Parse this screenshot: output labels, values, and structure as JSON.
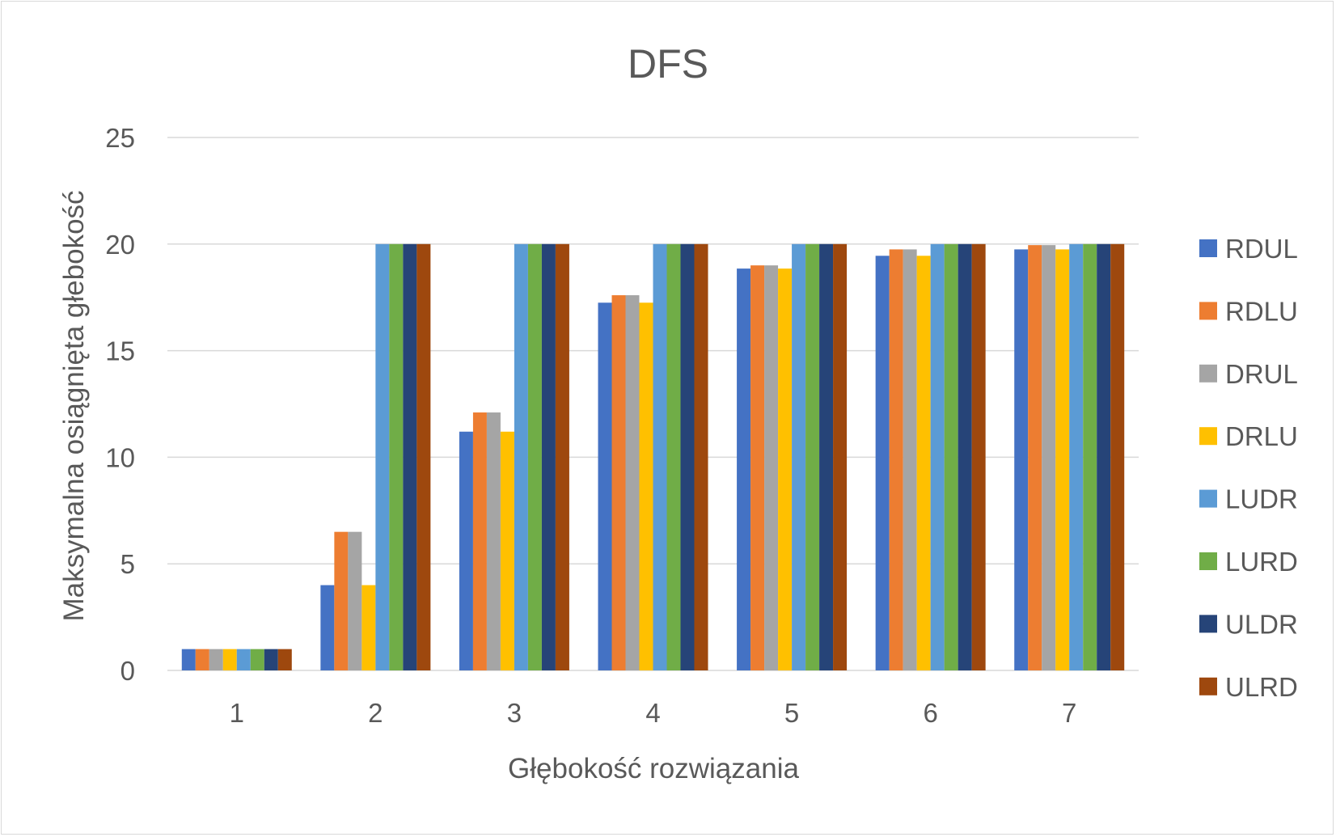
{
  "chart_data": {
    "type": "bar",
    "title": "DFS",
    "xlabel": "Głębokość rozwiązania",
    "ylabel": "Maksymalna osiągnięta głebokość",
    "categories": [
      "1",
      "2",
      "3",
      "4",
      "5",
      "6",
      "7"
    ],
    "ylim": [
      0,
      25
    ],
    "yticks": [
      0,
      5,
      10,
      15,
      20,
      25
    ],
    "grid": true,
    "legend_position": "right",
    "series": [
      {
        "name": "RDUL",
        "color": "#4472C4",
        "values": [
          1,
          4,
          11.2,
          17.25,
          18.85,
          19.45,
          19.75
        ]
      },
      {
        "name": "RDLU",
        "color": "#ED7D31",
        "values": [
          1,
          6.5,
          12.1,
          17.6,
          19,
          19.75,
          19.95
        ]
      },
      {
        "name": "DRUL",
        "color": "#A5A5A5",
        "values": [
          1,
          6.5,
          12.1,
          17.6,
          19,
          19.75,
          19.95
        ]
      },
      {
        "name": "DRLU",
        "color": "#FFC000",
        "values": [
          1,
          4,
          11.2,
          17.25,
          18.85,
          19.45,
          19.75
        ]
      },
      {
        "name": "LUDR",
        "color": "#5B9BD5",
        "values": [
          1,
          20,
          20,
          20,
          20,
          20,
          20
        ]
      },
      {
        "name": "LURD",
        "color": "#70AD47",
        "values": [
          1,
          20,
          20,
          20,
          20,
          20,
          20
        ]
      },
      {
        "name": "ULDR",
        "color": "#264478",
        "values": [
          1,
          20,
          20,
          20,
          20,
          20,
          20
        ]
      },
      {
        "name": "ULRD",
        "color": "#9E480E",
        "values": [
          1,
          20,
          20,
          20,
          20,
          20,
          20
        ]
      }
    ]
  }
}
